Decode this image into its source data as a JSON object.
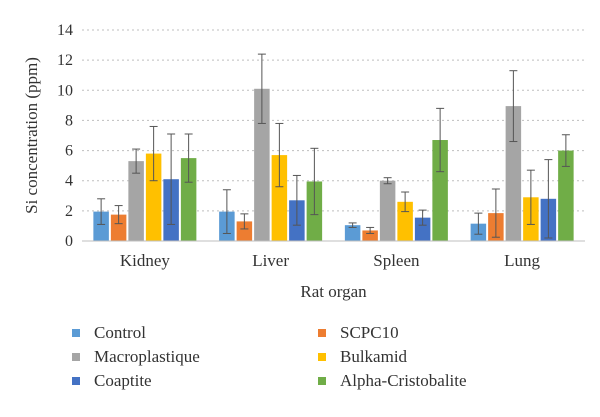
{
  "chart_data": {
    "type": "bar",
    "xlabel": "Rat organ",
    "ylabel": "Si concentration (ppm)",
    "ylim": [
      0,
      14
    ],
    "yticks": [
      0,
      2,
      4,
      6,
      8,
      10,
      12,
      14
    ],
    "grid": "horizontal dashed",
    "legend_placement": "bottom",
    "categories": [
      "Kidney",
      "Liver",
      "Spleen",
      "Lung"
    ],
    "series": [
      {
        "name": "Control",
        "color": "#5b9bd5",
        "values": [
          1.95,
          1.95,
          1.05,
          1.15
        ],
        "errors": [
          0.85,
          1.45,
          0.15,
          0.7
        ]
      },
      {
        "name": "SCPC10",
        "color": "#ed7d31",
        "values": [
          1.75,
          1.3,
          0.7,
          1.85
        ],
        "errors": [
          0.6,
          0.5,
          0.2,
          1.6
        ]
      },
      {
        "name": "Macroplastique",
        "color": "#a5a5a5",
        "values": [
          5.3,
          10.1,
          4.0,
          8.95
        ],
        "errors": [
          0.8,
          2.3,
          0.2,
          2.35
        ]
      },
      {
        "name": "Bulkamid",
        "color": "#ffc000",
        "values": [
          5.8,
          5.7,
          2.6,
          2.9
        ],
        "errors": [
          1.8,
          2.1,
          0.65,
          1.8
        ]
      },
      {
        "name": "Coaptite",
        "color": "#4472c4",
        "values": [
          4.1,
          2.7,
          1.55,
          2.8
        ],
        "errors": [
          3.0,
          1.65,
          0.5,
          2.6
        ]
      },
      {
        "name": "Alpha-Cristobalite",
        "color": "#70ad47",
        "values": [
          5.5,
          3.95,
          6.7,
          6.0
        ],
        "errors": [
          1.6,
          2.2,
          2.1,
          1.05
        ]
      }
    ]
  }
}
